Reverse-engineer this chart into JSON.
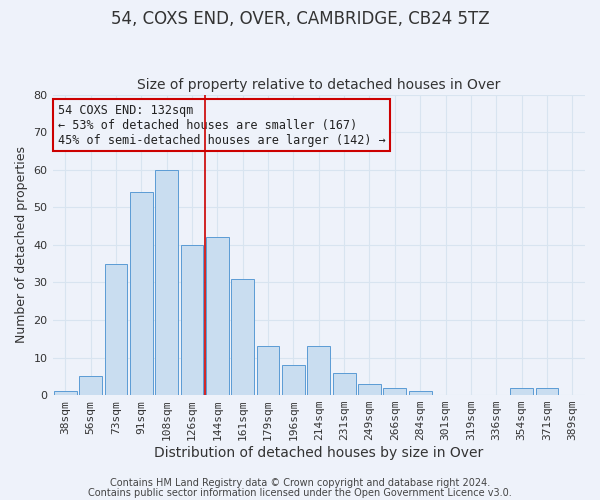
{
  "title": "54, COXS END, OVER, CAMBRIDGE, CB24 5TZ",
  "subtitle": "Size of property relative to detached houses in Over",
  "xlabel": "Distribution of detached houses by size in Over",
  "ylabel": "Number of detached properties",
  "bar_labels": [
    "38sqm",
    "56sqm",
    "73sqm",
    "91sqm",
    "108sqm",
    "126sqm",
    "144sqm",
    "161sqm",
    "179sqm",
    "196sqm",
    "214sqm",
    "231sqm",
    "249sqm",
    "266sqm",
    "284sqm",
    "301sqm",
    "319sqm",
    "336sqm",
    "354sqm",
    "371sqm",
    "389sqm"
  ],
  "bar_values": [
    1,
    5,
    35,
    54,
    60,
    40,
    42,
    31,
    13,
    8,
    13,
    6,
    3,
    2,
    1,
    0,
    0,
    0,
    2,
    2,
    0
  ],
  "bar_color": "#c9ddf0",
  "bar_edgecolor": "#5b9bd5",
  "ylim": [
    0,
    80
  ],
  "yticks": [
    0,
    10,
    20,
    30,
    40,
    50,
    60,
    70,
    80
  ],
  "vline_x": 5.5,
  "vline_color": "#cc0000",
  "annotation_title": "54 COXS END: 132sqm",
  "annotation_line1": "← 53% of detached houses are smaller (167)",
  "annotation_line2": "45% of semi-detached houses are larger (142) →",
  "annotation_box_edgecolor": "#cc0000",
  "footer_line1": "Contains HM Land Registry data © Crown copyright and database right 2024.",
  "footer_line2": "Contains public sector information licensed under the Open Government Licence v3.0.",
  "background_color": "#eef2fa",
  "grid_color": "#d8e4f0",
  "title_fontsize": 12,
  "subtitle_fontsize": 10,
  "xlabel_fontsize": 10,
  "ylabel_fontsize": 9,
  "tick_fontsize": 8,
  "annotation_fontsize": 8.5,
  "footer_fontsize": 7
}
